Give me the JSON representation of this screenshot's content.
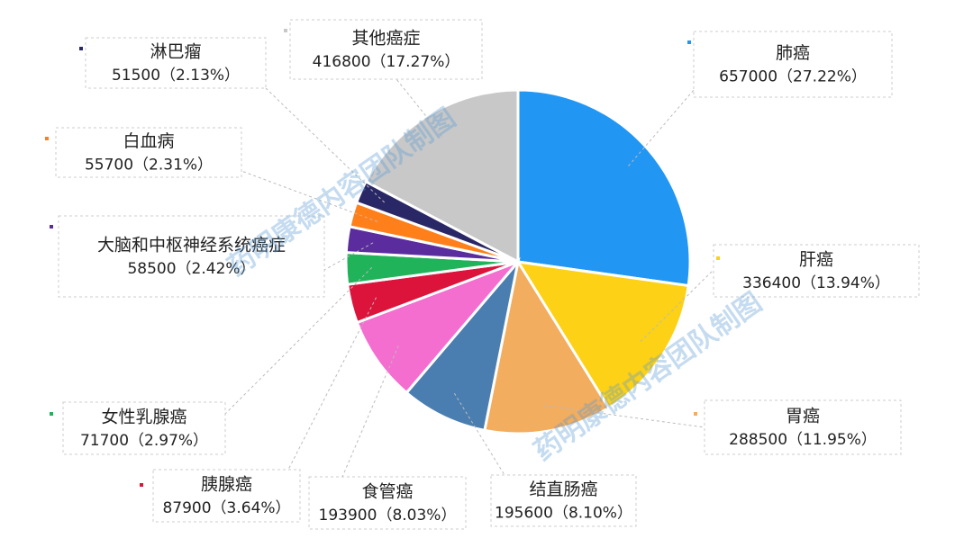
{
  "chart_data": {
    "type": "pie",
    "watermark": "药明康德内容团队制图",
    "categories": [
      "肺癌",
      "肝癌",
      "胃癌",
      "结直肠癌",
      "食管癌",
      "胰腺癌",
      "女性乳腺癌",
      "大脑和中枢神经系统癌症",
      "白血病",
      "淋巴瘤",
      "其他癌症"
    ],
    "values": [
      657000,
      336400,
      288500,
      195600,
      193900,
      87900,
      71700,
      58500,
      55700,
      51500,
      416800
    ],
    "value_labels": [
      "657000（27.22%）",
      "336400（13.94%）",
      "288500（11.95%）",
      "195600（8.10%）",
      "193900（8.03%）",
      "87900（3.64%）",
      "71700（2.97%）",
      "58500（2.42%）",
      "55700（2.31%）",
      "51500（2.13%）",
      "416800（17.27%）"
    ],
    "colors": [
      "#2196f3",
      "#fcd116",
      "#f2ad5e",
      "#4a7eb0",
      "#f46ed0",
      "#dc143c",
      "#21b35a",
      "#5b2c9e",
      "#ff7f1a",
      "#2a2766",
      "#c8c8c8"
    ]
  }
}
